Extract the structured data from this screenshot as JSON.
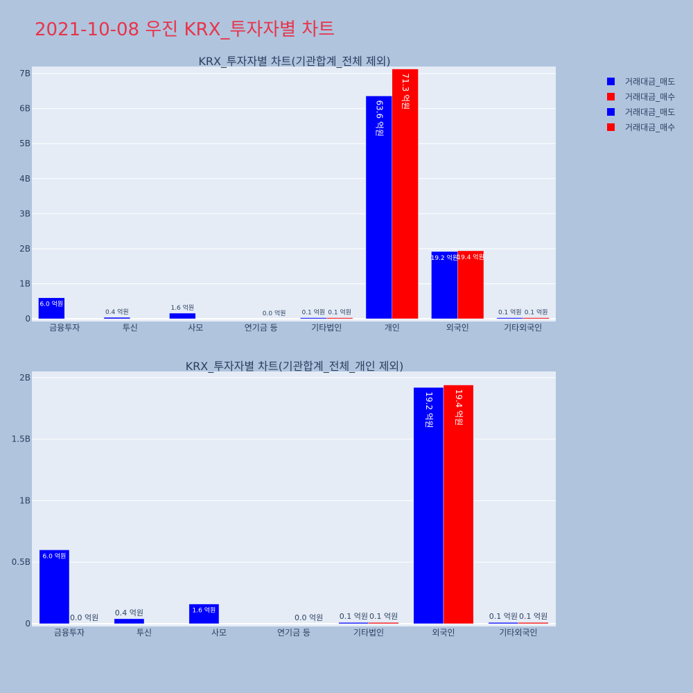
{
  "page": {
    "title": "2021-10-08 우진 KRX_투자자별 차트"
  },
  "legend": [
    {
      "label": "거래대금_매도",
      "color": "#0000ff"
    },
    {
      "label": "거래대금_매수",
      "color": "#ff0000"
    },
    {
      "label": "거래대금_매도",
      "color": "#0000ff"
    },
    {
      "label": "거래대금_매수",
      "color": "#ff0000"
    }
  ],
  "colors": {
    "sell": "#0000ff",
    "buy": "#ff0000",
    "plot_bg": "#e5ecf6",
    "text": "#2a3f5f"
  },
  "chart_data": [
    {
      "type": "bar",
      "title": "KRX_투자자별 차트(기관합계_전체 제외)",
      "categories": [
        "금융투자",
        "투신",
        "사모",
        "연기금 등",
        "기타법인",
        "개인",
        "외국인",
        "기타외국인"
      ],
      "ylim": [
        0,
        7200000000
      ],
      "ytick_values": [
        0,
        1000000000,
        2000000000,
        3000000000,
        4000000000,
        5000000000,
        6000000000,
        7000000000
      ],
      "ytick_labels": [
        "0",
        "1B",
        "2B",
        "3B",
        "4B",
        "5B",
        "6B",
        "7B"
      ],
      "series": [
        {
          "name": "거래대금_매도",
          "color": "#0000ff",
          "values": [
            600000000,
            40000000,
            160000000,
            0,
            10000000,
            6360000000,
            1920000000,
            10000000
          ],
          "labels": [
            "6.0 억원",
            "0.4 억원",
            "1.6 억원",
            "",
            "0.1 억원",
            "63.6 억원",
            "19.2 억원",
            "0.1 억원"
          ]
        },
        {
          "name": "거래대금_매수",
          "color": "#ff0000",
          "values": [
            0,
            0,
            0,
            0,
            10000000,
            7130000000,
            1940000000,
            10000000
          ],
          "labels": [
            "",
            "",
            "",
            "0.0 억원",
            "0.1 억원",
            "71.3 억원",
            "19.4 억원",
            "0.1 억원"
          ]
        }
      ]
    },
    {
      "type": "bar",
      "title": "KRX_투자자별 차트(기관합계_전체_개인 제외)",
      "categories": [
        "금융투자",
        "투신",
        "사모",
        "연기금 등",
        "기타법인",
        "외국인",
        "기타외국인"
      ],
      "ylim": [
        0,
        2050000000
      ],
      "ytick_values": [
        0,
        500000000,
        1000000000,
        1500000000,
        2000000000
      ],
      "ytick_labels": [
        "0",
        "0.5B",
        "1B",
        "1.5B",
        "2B"
      ],
      "series": [
        {
          "name": "거래대금_매도",
          "color": "#0000ff",
          "values": [
            600000000,
            40000000,
            160000000,
            0,
            10000000,
            1920000000,
            10000000
          ],
          "labels": [
            "6.0 억원",
            "0.4 억원",
            "1.6 억원",
            "",
            "0.1 억원",
            "19.2 억원",
            "0.1 억원"
          ]
        },
        {
          "name": "거래대금_매수",
          "color": "#ff0000",
          "values": [
            0,
            0,
            0,
            0,
            10000000,
            1940000000,
            10000000
          ],
          "labels": [
            "0.0 억원",
            "",
            "",
            "0.0 억원",
            "0.1 억원",
            "19.4 억원",
            "0.1 억원"
          ]
        }
      ]
    }
  ]
}
